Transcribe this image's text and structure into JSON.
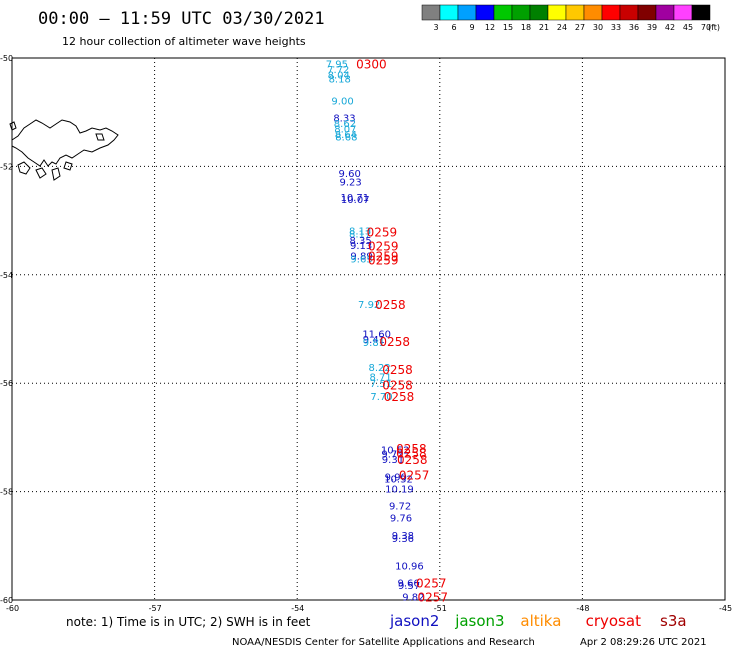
{
  "header": {
    "title": "00:00 – 11:59 UTC 03/30/2021",
    "subtitle": "12 hour collection of altimeter wave heights"
  },
  "legend": {
    "unit": "(ft)",
    "bins": [
      {
        "label": "3",
        "color": "#808080"
      },
      {
        "label": "6",
        "color": "#00ffff"
      },
      {
        "label": "9",
        "color": "#00a0ff"
      },
      {
        "label": "12",
        "color": "#0000ff"
      },
      {
        "label": "15",
        "color": "#00c800"
      },
      {
        "label": "18",
        "color": "#00a000"
      },
      {
        "label": "21",
        "color": "#008000"
      },
      {
        "label": "24",
        "color": "#ffff00"
      },
      {
        "label": "27",
        "color": "#ffc800"
      },
      {
        "label": "30",
        "color": "#ff8c00"
      },
      {
        "label": "33",
        "color": "#ff0000"
      },
      {
        "label": "36",
        "color": "#c80000"
      },
      {
        "label": "39",
        "color": "#800000"
      },
      {
        "label": "42",
        "color": "#a000a0"
      },
      {
        "label": "45",
        "color": "#ff40ff"
      },
      {
        "label": "70",
        "color": "#000000"
      }
    ]
  },
  "map": {
    "lon_range": [
      -60,
      -45
    ],
    "lat_range": [
      -60,
      -50
    ],
    "lon_ticks": [
      "-60",
      "-57",
      "-54",
      "-51",
      "-48",
      "-45"
    ],
    "lat_ticks": [
      "-50",
      "-52",
      "-54",
      "-56",
      "-58",
      "-60"
    ],
    "grid": true,
    "grid_style": "dotted",
    "colors": {
      "cyan_label": "#18a8d8",
      "blue_label": "#1010c0",
      "time_label": "#ee0000"
    }
  },
  "observations": [
    {
      "lon": -53.4,
      "lat": -50.1,
      "value": "7.95",
      "color": "#18a8d8"
    },
    {
      "lon": -53.37,
      "lat": -50.2,
      "value": "7.72",
      "color": "#18a8d8"
    },
    {
      "lon": -53.36,
      "lat": -50.3,
      "value": "8.04",
      "color": "#18a8d8"
    },
    {
      "lon": -53.34,
      "lat": -50.38,
      "value": "8.18",
      "color": "#18a8d8"
    },
    {
      "lon": -53.28,
      "lat": -50.78,
      "value": "9.00",
      "color": "#18a8d8"
    },
    {
      "lon": -53.24,
      "lat": -51.1,
      "value": "8.33",
      "color": "#1010c0"
    },
    {
      "lon": -53.23,
      "lat": -51.2,
      "value": "8.62",
      "color": "#18a8d8"
    },
    {
      "lon": -53.22,
      "lat": -51.3,
      "value": "8.07",
      "color": "#18a8d8"
    },
    {
      "lon": -53.21,
      "lat": -51.4,
      "value": "8.64",
      "color": "#18a8d8"
    },
    {
      "lon": -53.2,
      "lat": -51.45,
      "value": "8.68",
      "color": "#18a8d8"
    },
    {
      "lon": -53.13,
      "lat": -52.12,
      "value": "9.60",
      "color": "#1010c0"
    },
    {
      "lon": -53.11,
      "lat": -52.28,
      "value": "9.23",
      "color": "#1010c0"
    },
    {
      "lon": -53.09,
      "lat": -52.56,
      "value": "10.71",
      "color": "#1010c0"
    },
    {
      "lon": -53.08,
      "lat": -52.6,
      "value": "10.07",
      "color": "#1010c0"
    },
    {
      "lon": -52.91,
      "lat": -53.18,
      "value": "8.13",
      "color": "#18a8d8"
    },
    {
      "lon": -52.91,
      "lat": -53.24,
      "value": "8.17",
      "color": "#18a8d8"
    },
    {
      "lon": -52.9,
      "lat": -53.36,
      "value": "8.35",
      "color": "#1010c0"
    },
    {
      "lon": -52.89,
      "lat": -53.45,
      "value": "9.13",
      "color": "#1010c0"
    },
    {
      "lon": -52.88,
      "lat": -53.64,
      "value": "9.89",
      "color": "#1010c0"
    },
    {
      "lon": -52.88,
      "lat": -53.7,
      "value": "9.65",
      "color": "#18a8d8"
    },
    {
      "lon": -52.72,
      "lat": -54.54,
      "value": "7.92",
      "color": "#18a8d8"
    },
    {
      "lon": -52.63,
      "lat": -55.08,
      "value": "11.60",
      "color": "#1010c0"
    },
    {
      "lon": -52.62,
      "lat": -55.18,
      "value": "9.41",
      "color": "#1010c0"
    },
    {
      "lon": -52.62,
      "lat": -55.24,
      "value": "9.81",
      "color": "#18a8d8"
    },
    {
      "lon": -52.5,
      "lat": -55.7,
      "value": "8.22",
      "color": "#18a8d8"
    },
    {
      "lon": -52.48,
      "lat": -55.88,
      "value": "8.71",
      "color": "#18a8d8"
    },
    {
      "lon": -52.47,
      "lat": -56.0,
      "value": "7.51",
      "color": "#18a8d8"
    },
    {
      "lon": -52.46,
      "lat": -56.24,
      "value": "7.70",
      "color": "#18a8d8"
    },
    {
      "lon": -52.24,
      "lat": -57.22,
      "value": "10.52",
      "color": "#1010c0"
    },
    {
      "lon": -52.23,
      "lat": -57.3,
      "value": "9.72",
      "color": "#1010c0"
    },
    {
      "lon": -52.22,
      "lat": -57.4,
      "value": "9.31",
      "color": "#1010c0"
    },
    {
      "lon": -52.16,
      "lat": -57.72,
      "value": "9.90",
      "color": "#1010c0"
    },
    {
      "lon": -52.17,
      "lat": -57.76,
      "value": "10.32",
      "color": "#1010c0"
    },
    {
      "lon": -52.15,
      "lat": -57.94,
      "value": "10.19",
      "color": "#1010c0"
    },
    {
      "lon": -52.07,
      "lat": -58.26,
      "value": "9.72",
      "color": "#1010c0"
    },
    {
      "lon": -52.05,
      "lat": -58.48,
      "value": "9.76",
      "color": "#1010c0"
    },
    {
      "lon": -52.01,
      "lat": -58.8,
      "value": "9.38",
      "color": "#1010c0"
    },
    {
      "lon": -52.01,
      "lat": -58.86,
      "value": "9.36",
      "color": "#1010c0"
    },
    {
      "lon": -51.94,
      "lat": -59.36,
      "value": "10.96",
      "color": "#1010c0"
    },
    {
      "lon": -51.89,
      "lat": -59.68,
      "value": "9.66",
      "color": "#1010c0"
    },
    {
      "lon": -51.88,
      "lat": -59.72,
      "value": "9.57",
      "color": "#1010c0"
    },
    {
      "lon": -51.79,
      "lat": -59.94,
      "value": "9.82",
      "color": "#1010c0"
    }
  ],
  "times": [
    {
      "lon": -52.76,
      "lat": -50.1,
      "label": "0300"
    },
    {
      "lon": -52.54,
      "lat": -53.2,
      "label": "0259"
    },
    {
      "lon": -52.51,
      "lat": -53.46,
      "label": "0259"
    },
    {
      "lon": -52.51,
      "lat": -53.64,
      "label": "0259"
    },
    {
      "lon": -52.51,
      "lat": -53.72,
      "label": "0259"
    },
    {
      "lon": -52.36,
      "lat": -54.54,
      "label": "0258"
    },
    {
      "lon": -52.27,
      "lat": -55.22,
      "label": "0258"
    },
    {
      "lon": -52.21,
      "lat": -55.74,
      "label": "0258"
    },
    {
      "lon": -52.21,
      "lat": -56.02,
      "label": "0258"
    },
    {
      "lon": -52.18,
      "lat": -56.24,
      "label": "0258"
    },
    {
      "lon": -51.92,
      "lat": -57.2,
      "label": "0258"
    },
    {
      "lon": -51.92,
      "lat": -57.28,
      "label": "0258"
    },
    {
      "lon": -51.9,
      "lat": -57.4,
      "label": "0258"
    },
    {
      "lon": -51.86,
      "lat": -57.68,
      "label": "0257"
    },
    {
      "lon": -51.5,
      "lat": -59.68,
      "label": "0257"
    },
    {
      "lon": -51.47,
      "lat": -59.94,
      "label": "0257"
    }
  ],
  "footer": {
    "note": "note:  1) Time is in UTC;  2) SWH is in feet",
    "satellites": [
      {
        "name": "jason2",
        "color": "#1010c0"
      },
      {
        "name": "jason3",
        "color": "#00a000"
      },
      {
        "name": "altika",
        "color": "#ff8c00"
      },
      {
        "name": "cryosat",
        "color": "#ee0000"
      },
      {
        "name": "s3a",
        "color": "#a00000"
      }
    ],
    "credit": "NOAA/NESDIS Center for Satellite Applications and Research",
    "generated": "Apr  2 08:29:26 UTC 2021"
  }
}
